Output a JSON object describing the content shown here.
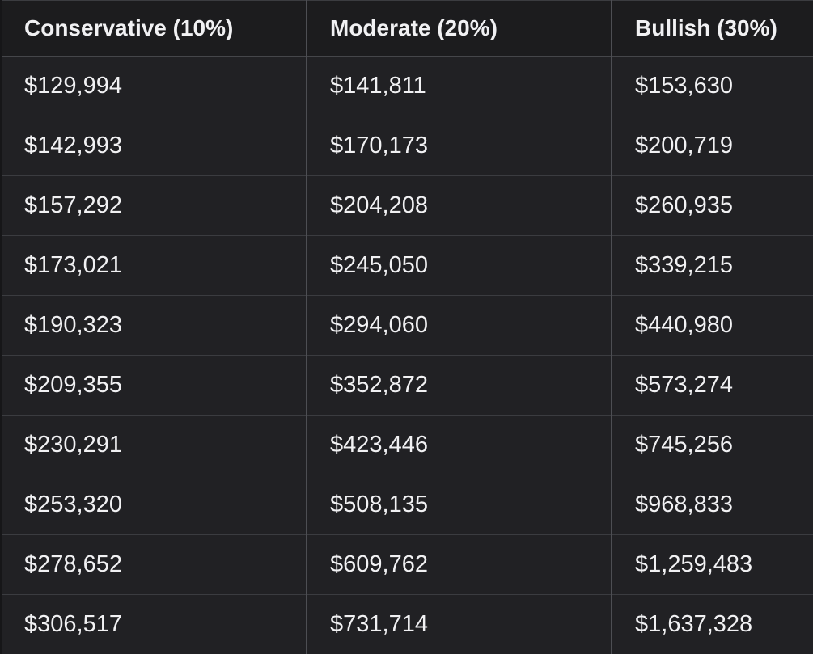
{
  "chart_data": {
    "type": "table",
    "title": "",
    "columns": [
      "Conservative (10%)",
      "Moderate (20%)",
      "Bullish (30%)"
    ],
    "rows": [
      [
        "$129,994",
        "$141,811",
        "$153,630"
      ],
      [
        "$142,993",
        "$170,173",
        "$200,719"
      ],
      [
        "$157,292",
        "$204,208",
        "$260,935"
      ],
      [
        "$173,021",
        "$245,050",
        "$339,215"
      ],
      [
        "$190,323",
        "$294,060",
        "$440,980"
      ],
      [
        "$209,355",
        "$352,872",
        "$573,274"
      ],
      [
        "$230,291",
        "$423,446",
        "$745,256"
      ],
      [
        "$253,320",
        "$508,135",
        "$968,833"
      ],
      [
        "$278,652",
        "$609,762",
        "$1,259,483"
      ],
      [
        "$306,517",
        "$731,714",
        "$1,637,328"
      ]
    ]
  },
  "colors": {
    "page_background": "#212124",
    "header_background": "#1c1c1e",
    "cell_background": "#212124",
    "text": "#f1f1f3",
    "row_separator": "#3b3c40",
    "column_divider": "#4d4e53"
  }
}
